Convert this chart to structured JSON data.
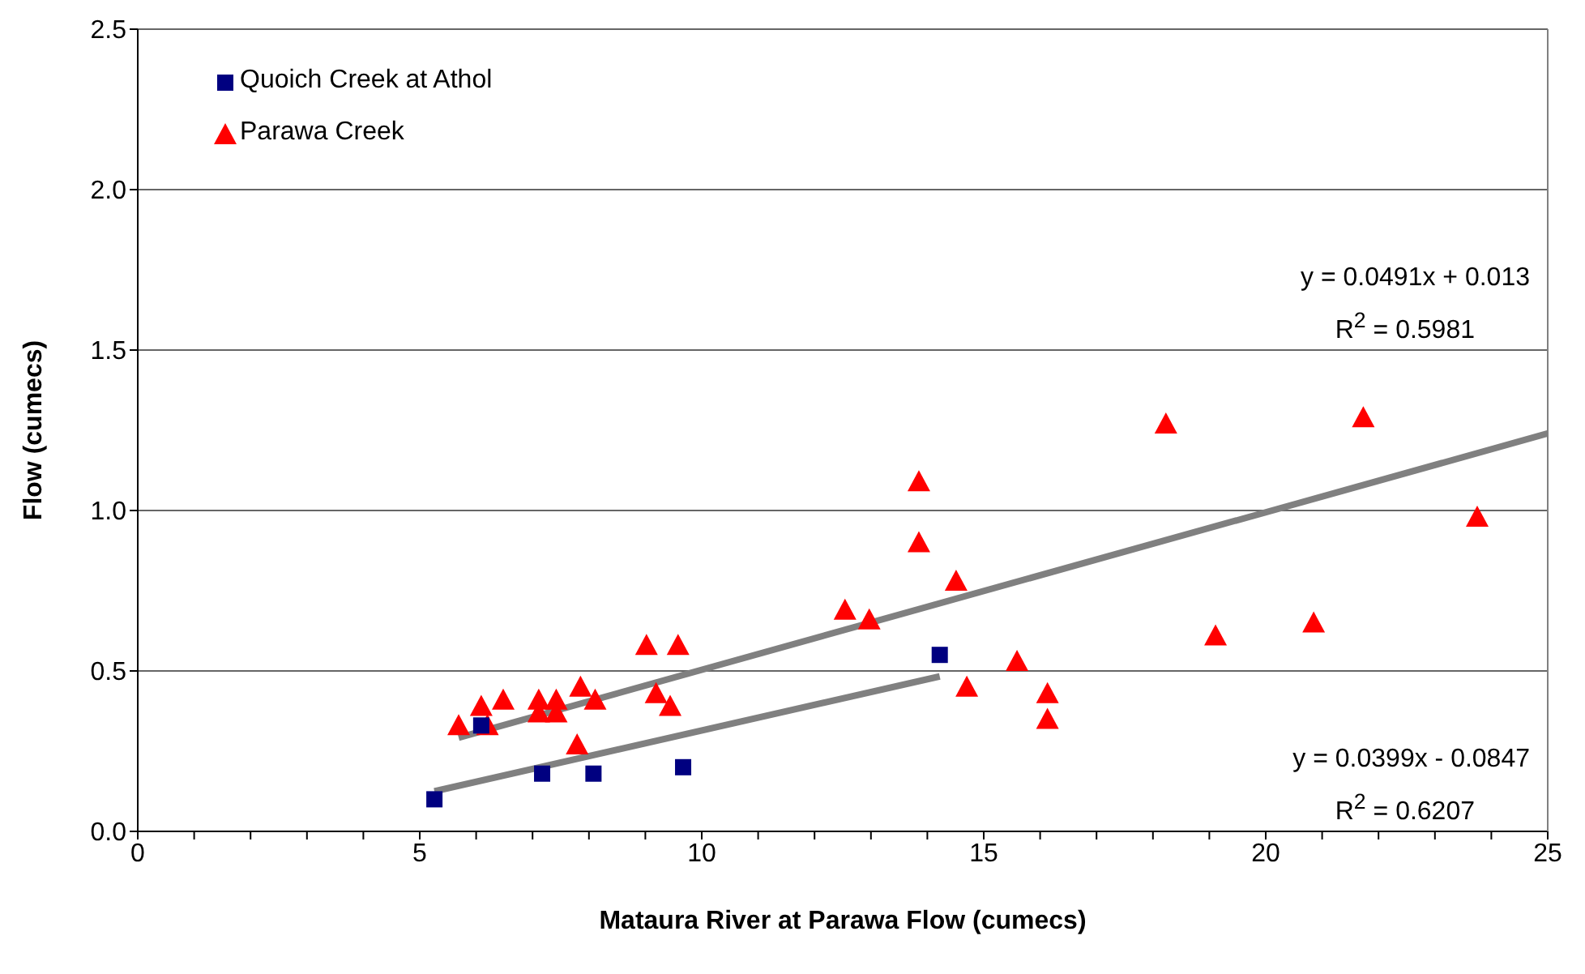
{
  "chart_data": {
    "type": "scatter",
    "xlabel": "Mataura River at Parawa Flow (cumecs)",
    "ylabel": "Flow (cumecs)",
    "xlim": [
      0,
      25
    ],
    "ylim": [
      0,
      2.5
    ],
    "xticks": [
      0,
      {
        "value": 1,
        "label": null
      },
      {
        "value": 2,
        "label": null
      },
      {
        "value": 3,
        "label": null
      },
      {
        "value": 4,
        "label": null
      },
      5,
      {
        "value": 6,
        "label": null
      },
      {
        "value": 7,
        "label": null
      },
      {
        "value": 8,
        "label": null
      },
      {
        "value": 9,
        "label": null
      },
      10,
      {
        "value": 11,
        "label": null
      },
      {
        "value": 12,
        "label": null
      },
      {
        "value": 13,
        "label": null
      },
      {
        "value": 14,
        "label": null
      },
      15,
      {
        "value": 16,
        "label": null
      },
      {
        "value": 17,
        "label": null
      },
      {
        "value": 18,
        "label": null
      },
      {
        "value": 19,
        "label": null
      },
      20,
      {
        "value": 21,
        "label": null
      },
      {
        "value": 22,
        "label": null
      },
      {
        "value": 23,
        "label": null
      },
      {
        "value": 24,
        "label": null
      },
      25
    ],
    "yticks": [
      {
        "value": 0,
        "label": "0.0"
      },
      {
        "value": 0.5,
        "label": "0.5"
      },
      {
        "value": 1,
        "label": "1.0"
      },
      {
        "value": 1.5,
        "label": "1.5"
      },
      {
        "value": 2,
        "label": "2.0"
      },
      {
        "value": 2.5,
        "label": "2.5"
      }
    ],
    "grid": "y",
    "legend": "top left",
    "series": [
      {
        "name": "Quoich Creek at Athol",
        "color": "#000080",
        "marker": "square",
        "x": [
          5.26,
          6.09,
          7.17,
          8.08,
          9.67,
          14.22
        ],
        "values": [
          0.1,
          0.33,
          0.18,
          0.18,
          0.2,
          0.55
        ]
      },
      {
        "name": "Parawa Creek",
        "color": "#ff0000",
        "marker": "triangle",
        "x": [
          5.69,
          6.09,
          6.2,
          6.48,
          7.11,
          7.11,
          7.42,
          7.42,
          7.85,
          8.11,
          7.79,
          9.02,
          9.58,
          9.19,
          9.44,
          12.54,
          12.97,
          13.85,
          14.51,
          14.7,
          15.59,
          13.85,
          18.23,
          21.73,
          23.75,
          19.11,
          20.85,
          16.13,
          16.13
        ],
        "values": [
          0.33,
          0.39,
          0.33,
          0.41,
          0.41,
          0.37,
          0.41,
          0.37,
          0.45,
          0.41,
          0.27,
          0.58,
          0.58,
          0.43,
          0.39,
          0.69,
          0.66,
          0.9,
          0.78,
          0.45,
          0.53,
          1.09,
          1.27,
          1.29,
          0.98,
          0.61,
          0.65,
          0.43,
          0.35
        ]
      },
      {
        "type": "line",
        "color": "#808080",
        "marker": "none",
        "x": [
          5.69,
          25
        ],
        "values": [
          0.292,
          1.24
        ]
      },
      {
        "type": "line",
        "color": "#808080",
        "marker": "none",
        "x": [
          5.26,
          14.22
        ],
        "values": [
          0.125,
          0.483
        ]
      }
    ],
    "annotations": [
      "y = 0.0491x + 0.013",
      "R$^{2}$ = 0.5981",
      "y = 0.0399x - 0.0847",
      "R$^{2}$ = 0.6207"
    ]
  }
}
